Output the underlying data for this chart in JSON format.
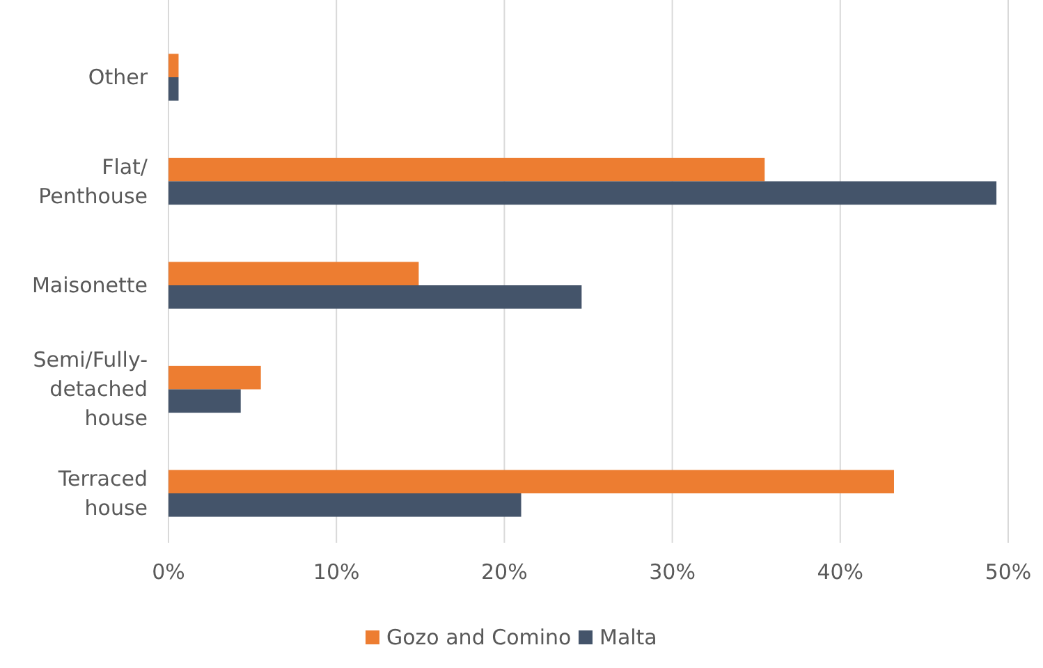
{
  "chart_data": {
    "type": "bar",
    "orientation": "horizontal",
    "categories": [
      "Other",
      "Flat/\nPenthouse",
      "Maisonette",
      "Semi/Fully-\ndetached\nhouse",
      "Terraced\nhouse"
    ],
    "series": [
      {
        "name": "Gozo and Comino",
        "color": "#ed7d31",
        "values": [
          0.6,
          35.5,
          14.9,
          5.5,
          43.2
        ]
      },
      {
        "name": "Malta",
        "color": "#44546a",
        "values": [
          0.6,
          49.3,
          24.6,
          4.3,
          21.0
        ]
      }
    ],
    "xlim": [
      0,
      50
    ],
    "xticks": [
      {
        "value": 0,
        "label": "0%"
      },
      {
        "value": 10,
        "label": "10%"
      },
      {
        "value": 20,
        "label": "20%"
      },
      {
        "value": 30,
        "label": "30%"
      },
      {
        "value": 40,
        "label": "40%"
      },
      {
        "value": 50,
        "label": "50%"
      }
    ],
    "grid": "x",
    "legend": "bottom"
  }
}
